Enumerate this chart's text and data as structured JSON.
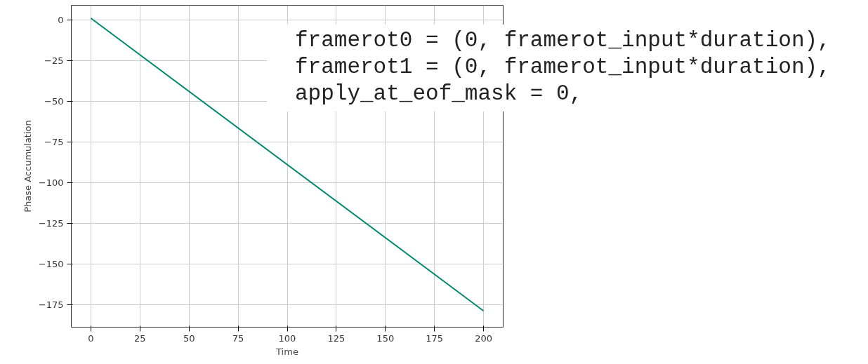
{
  "chart_data": {
    "type": "line",
    "xlabel": "Time",
    "ylabel": "Phase Accumulation",
    "x": [
      0,
      200
    ],
    "series": [
      {
        "color": "#00896f",
        "values": [
          1,
          -179
        ]
      }
    ],
    "xlim": [
      -10,
      210
    ],
    "ylim": [
      -189,
      9
    ],
    "xticks": [
      0,
      25,
      50,
      75,
      100,
      125,
      150,
      175,
      200
    ],
    "yticks": [
      0,
      -25,
      -50,
      -75,
      -100,
      -125,
      -150,
      -175
    ],
    "grid": true,
    "marker": "none",
    "line_style": "solid",
    "annotations": [
      "framerot0 = (0, framerot_input*duration),",
      "framerot1 = (0, framerot_input*duration),",
      "apply_at_eof_mask = 0,"
    ]
  }
}
